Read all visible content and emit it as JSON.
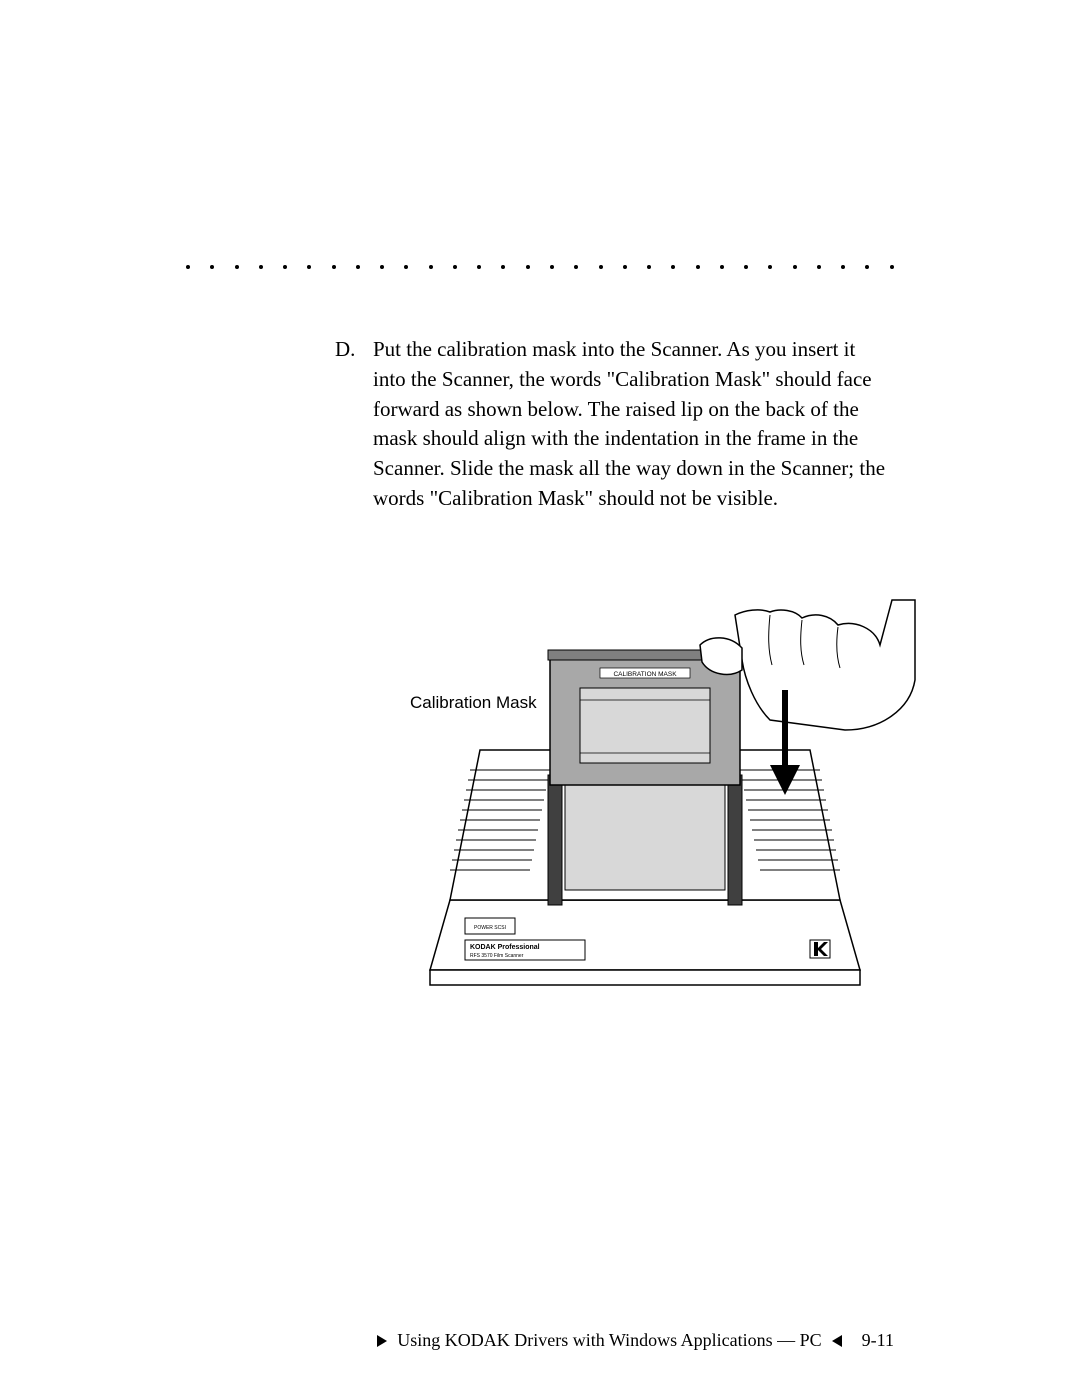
{
  "instruction": {
    "marker": "D.",
    "text": "Put the calibration mask into the Scanner. As you insert it into the Scanner, the words \"Calibration Mask\" should face forward as shown below. The raised lip on the back of the mask should align with the indentation in the frame in the Scanner. Slide the mask all the way down in the Scanner; the words \"Calibration Mask\" should not be visible."
  },
  "figure": {
    "callout_label": "Calibration Mask",
    "mask_label": "CALIBRATION MASK",
    "device_label_1": "KODAK Professional",
    "device_label_2": "RFS 3570 Film Scanner",
    "power_label": "POWER SCSI",
    "colors": {
      "line": "#000000",
      "dark_gray": "#808080",
      "mid_gray": "#a8a8a8",
      "light_gray": "#d8d8d8",
      "white": "#ffffff"
    }
  },
  "footer": {
    "title": "Using KODAK Drivers with Windows Applications — PC",
    "page": "9-11"
  },
  "dots": 30
}
